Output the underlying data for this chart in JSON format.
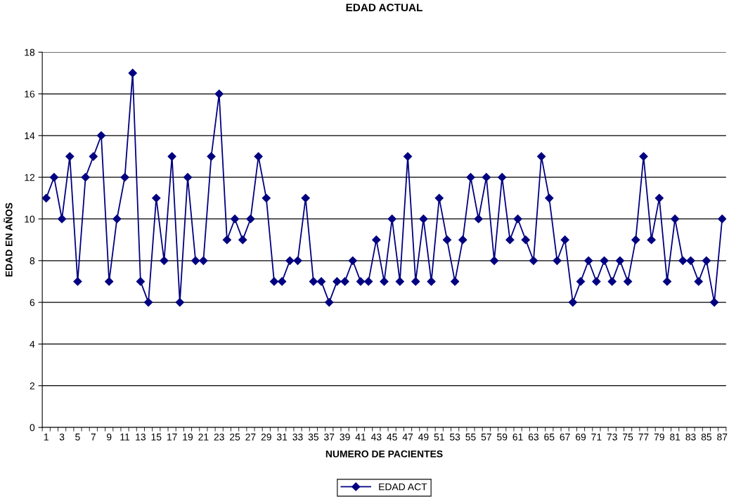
{
  "chart_data": {
    "type": "line",
    "title": "EDAD ACTUAL",
    "xlabel": "NUMERO DE PACIENTES",
    "ylabel": "EDAD EN AÑOS",
    "categories": [
      "1",
      null,
      "3",
      null,
      "5",
      null,
      "7",
      null,
      "9",
      null,
      "11",
      null,
      "13",
      null,
      "15",
      null,
      "17",
      null,
      "19",
      null,
      "21",
      null,
      "23",
      null,
      "25",
      null,
      "27",
      null,
      "29",
      null,
      "31",
      null,
      "33",
      null,
      "35",
      null,
      "37",
      null,
      "39",
      null,
      "41",
      null,
      "43",
      null,
      "45",
      null,
      "47",
      null,
      "49",
      null,
      "51",
      null,
      "53",
      null,
      "55",
      null,
      "57",
      null,
      "59",
      null,
      "61",
      null,
      "63",
      null,
      "65",
      null,
      "67",
      null,
      "69",
      null,
      "71",
      null,
      "73",
      null,
      "75",
      null,
      "77",
      null,
      "79",
      null,
      "81",
      null,
      "83",
      null,
      "85",
      null,
      "87"
    ],
    "series": [
      {
        "name": "EDAD ACT",
        "color": "#000080",
        "values": [
          11,
          12,
          10,
          13,
          7,
          12,
          13,
          14,
          7,
          10,
          12,
          17,
          7,
          6,
          11,
          8,
          13,
          6,
          12,
          8,
          8,
          13,
          16,
          9,
          10,
          9,
          10,
          13,
          11,
          7,
          7,
          8,
          8,
          11,
          7,
          7,
          6,
          7,
          7,
          8,
          7,
          7,
          9,
          7,
          10,
          7,
          13,
          7,
          10,
          7,
          11,
          9,
          7,
          9,
          12,
          10,
          12,
          8,
          12,
          9,
          10,
          9,
          8,
          13,
          11,
          8,
          9,
          6,
          7,
          8,
          7,
          8,
          7,
          8,
          7,
          9,
          13,
          9,
          11,
          7,
          10,
          8,
          8,
          7,
          8,
          6,
          10
        ]
      }
    ],
    "ylim": [
      0,
      18
    ],
    "yticks": [
      0,
      2,
      4,
      6,
      8,
      10,
      12,
      14,
      16,
      18
    ],
    "grid": "y",
    "legend": "bottom",
    "marker": "diamond",
    "line_style": "solid"
  }
}
